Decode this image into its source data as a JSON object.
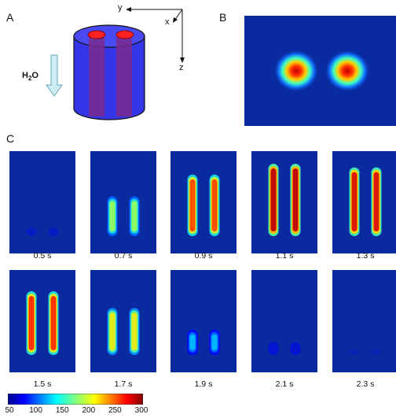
{
  "panels": {
    "a": "A",
    "b": "B",
    "c": "C"
  },
  "panel_a": {
    "axes": {
      "x": "x",
      "y": "y",
      "z": "z"
    },
    "flow_label_main": "H",
    "flow_label_sub": "2",
    "flow_label_tail": "O",
    "flow_arrow_icon": "down-arrow-icon"
  },
  "panel_c": {
    "frames": [
      {
        "time": "0.5 s",
        "level": 0.12
      },
      {
        "time": "0.7 s",
        "level": 0.55
      },
      {
        "time": "0.9 s",
        "level": 0.85
      },
      {
        "time": "1.1 s",
        "level": 1.0
      },
      {
        "time": "1.3 s",
        "level": 0.95
      },
      {
        "time": "1.5 s",
        "level": 0.88
      },
      {
        "time": "1.7 s",
        "level": 0.65
      },
      {
        "time": "1.9 s",
        "level": 0.35
      },
      {
        "time": "2.1 s",
        "level": 0.18
      },
      {
        "time": "2.3 s",
        "level": 0.06
      }
    ]
  },
  "colorbar": {
    "ticks": [
      "50",
      "100",
      "150",
      "200",
      "250",
      "300"
    ]
  },
  "colors": {
    "cylinder": "#3535e8",
    "rod": "#7a2a8c",
    "rod_top": "#ff2020",
    "map_background": "#0a2aa0",
    "arrow_fill": "#cfeef4"
  }
}
